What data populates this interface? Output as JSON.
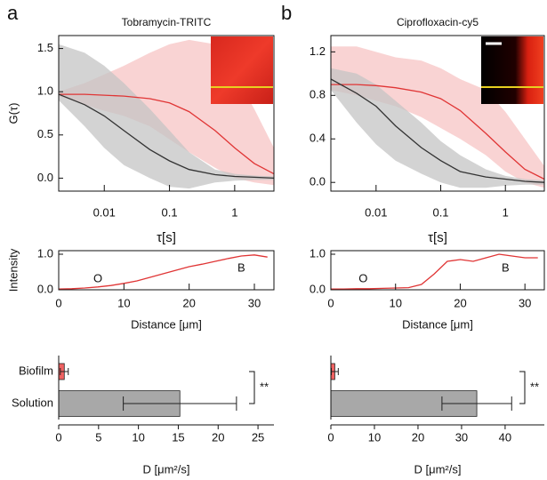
{
  "panel_labels": [
    "a",
    "b"
  ],
  "chart_data": [
    {
      "type": "line",
      "title": "Tobramycin-TRITC",
      "x_label": "τ[s]",
      "y_label": "G(τ)",
      "xscale": "log",
      "xlim": [
        0.002,
        4
      ],
      "xticks": [
        {
          "value": 0.01,
          "label": "0.01"
        },
        {
          "value": 0.1,
          "label": "0.1"
        },
        1
      ],
      "ylim": [
        -0.15,
        1.65
      ],
      "yticks": [
        {
          "value": 0,
          "label": "0.0"
        },
        {
          "value": 0.5,
          "label": "0.5"
        },
        {
          "value": 1,
          "label": "1.0"
        },
        {
          "value": 1.5,
          "label": "1.5"
        }
      ],
      "x": [
        0.002,
        0.005,
        0.01,
        0.02,
        0.05,
        0.1,
        0.2,
        0.5,
        1,
        2,
        4
      ],
      "bands": [
        {
          "color": "#f7c4c4",
          "high": [
            1.0,
            1.1,
            1.2,
            1.3,
            1.45,
            1.55,
            1.6,
            1.55,
            1.2,
            0.8,
            0.35
          ],
          "low": [
            0.95,
            0.85,
            0.78,
            0.72,
            0.6,
            0.45,
            0.3,
            0.12,
            0.0,
            -0.05,
            -0.08
          ]
        },
        {
          "color": "#c4c4c4",
          "high": [
            1.55,
            1.45,
            1.3,
            1.1,
            0.8,
            0.55,
            0.3,
            0.1,
            0.05,
            0.03,
            0.02
          ],
          "low": [
            0.9,
            0.6,
            0.35,
            0.15,
            0.0,
            -0.1,
            -0.12,
            -0.05,
            -0.03,
            -0.02,
            -0.02
          ]
        }
      ],
      "series": [
        {
          "color": "#e03535",
          "values": [
            0.97,
            0.97,
            0.96,
            0.95,
            0.92,
            0.87,
            0.77,
            0.55,
            0.35,
            0.17,
            0.05
          ]
        },
        {
          "color": "#333333",
          "values": [
            0.97,
            0.85,
            0.72,
            0.55,
            0.33,
            0.2,
            0.1,
            0.04,
            0.02,
            0.01,
            0.0
          ]
        }
      ]
    },
    {
      "type": "line",
      "x_label": "Distance [μm]",
      "y_label": "Intensity",
      "xlim": [
        0,
        33
      ],
      "xticks": [
        0,
        10,
        20,
        30
      ],
      "ylim": [
        0,
        1.1
      ],
      "yticks": [
        {
          "value": 0,
          "label": "0.0"
        },
        {
          "value": 1,
          "label": "1.0"
        }
      ],
      "x": [
        0,
        2,
        4,
        6,
        8,
        10,
        12,
        14,
        16,
        18,
        20,
        22,
        24,
        26,
        28,
        30,
        32
      ],
      "series": [
        {
          "color": "#e03535",
          "values": [
            0.02,
            0.03,
            0.05,
            0.08,
            0.12,
            0.18,
            0.25,
            0.35,
            0.45,
            0.55,
            0.65,
            0.72,
            0.8,
            0.88,
            0.95,
            0.98,
            0.92
          ]
        }
      ],
      "annotations": [
        {
          "text": "O",
          "x": 6,
          "y": 0.3
        },
        {
          "text": "B",
          "x": 28,
          "y": 0.6
        }
      ]
    },
    {
      "type": "hbar",
      "x_label": "D [μm²/s]",
      "categories": [
        "Biofilm",
        "Solution"
      ],
      "values": [
        0.7,
        15.2
      ],
      "errors": [
        0.5,
        7.1
      ],
      "colors": [
        "#f06262",
        "#a8a8a8"
      ],
      "xlim": [
        0,
        27
      ],
      "xticks": [
        0,
        5,
        10,
        15,
        20,
        25
      ],
      "annotations": [
        {
          "text": "**"
        }
      ]
    },
    {
      "type": "line",
      "title": "Ciprofloxacin-cy5",
      "x_label": "τ[s]",
      "xscale": "log",
      "xlim": [
        0.002,
        4
      ],
      "xticks": [
        {
          "value": 0.01,
          "label": "0.01"
        },
        {
          "value": 0.1,
          "label": "0.1"
        },
        1
      ],
      "ylim": [
        -0.08,
        1.35
      ],
      "yticks": [
        {
          "value": 0,
          "label": "0.0"
        },
        {
          "value": 0.4,
          "label": "0.4"
        },
        {
          "value": 0.8,
          "label": "0.8"
        },
        {
          "value": 1.2,
          "label": "1.2"
        }
      ],
      "x": [
        0.002,
        0.005,
        0.01,
        0.02,
        0.05,
        0.1,
        0.2,
        0.5,
        1,
        2,
        4
      ],
      "bands": [
        {
          "color": "#f7c4c4",
          "high": [
            1.25,
            1.25,
            1.2,
            1.15,
            1.12,
            1.05,
            0.95,
            0.85,
            0.65,
            0.4,
            0.15
          ],
          "low": [
            0.85,
            0.8,
            0.75,
            0.7,
            0.6,
            0.5,
            0.4,
            0.25,
            0.1,
            0.0,
            -0.05
          ]
        },
        {
          "color": "#c4c4c4",
          "high": [
            1.05,
            1.0,
            0.9,
            0.75,
            0.55,
            0.38,
            0.25,
            0.12,
            0.06,
            0.03,
            0.02
          ],
          "low": [
            0.85,
            0.55,
            0.35,
            0.2,
            0.08,
            0.0,
            -0.05,
            -0.05,
            -0.03,
            -0.02,
            -0.02
          ]
        }
      ],
      "series": [
        {
          "color": "#e03535",
          "values": [
            0.9,
            0.9,
            0.89,
            0.87,
            0.83,
            0.77,
            0.66,
            0.45,
            0.28,
            0.12,
            0.03
          ]
        },
        {
          "color": "#333333",
          "values": [
            0.95,
            0.82,
            0.7,
            0.52,
            0.32,
            0.2,
            0.1,
            0.05,
            0.03,
            0.01,
            0.0
          ]
        }
      ]
    },
    {
      "type": "line",
      "x_label": "Distance [μm]",
      "xlim": [
        0,
        33
      ],
      "xticks": [
        0,
        10,
        20,
        30
      ],
      "ylim": [
        0,
        1.1
      ],
      "yticks": [
        {
          "value": 0,
          "label": "0.0"
        },
        {
          "value": 1,
          "label": "1.0"
        }
      ],
      "x": [
        0,
        2,
        4,
        6,
        8,
        10,
        12,
        14,
        16,
        18,
        20,
        22,
        24,
        26,
        28,
        30,
        32
      ],
      "series": [
        {
          "color": "#e03535",
          "values": [
            0.02,
            0.02,
            0.03,
            0.03,
            0.04,
            0.05,
            0.06,
            0.15,
            0.45,
            0.8,
            0.85,
            0.8,
            0.9,
            1.0,
            0.95,
            0.9,
            0.9
          ]
        }
      ],
      "annotations": [
        {
          "text": "O",
          "x": 5,
          "y": 0.3
        },
        {
          "text": "B",
          "x": 27,
          "y": 0.6
        }
      ]
    },
    {
      "type": "hbar",
      "x_label": "D [μm²/s]",
      "categories": [
        "",
        ""
      ],
      "values": [
        0.9,
        33.5
      ],
      "errors": [
        0.8,
        8
      ],
      "colors": [
        "#f06262",
        "#a8a8a8"
      ],
      "xlim": [
        0,
        49
      ],
      "xticks": [
        0,
        10,
        20,
        30,
        40
      ],
      "annotations": [
        {
          "text": "**"
        }
      ]
    }
  ]
}
